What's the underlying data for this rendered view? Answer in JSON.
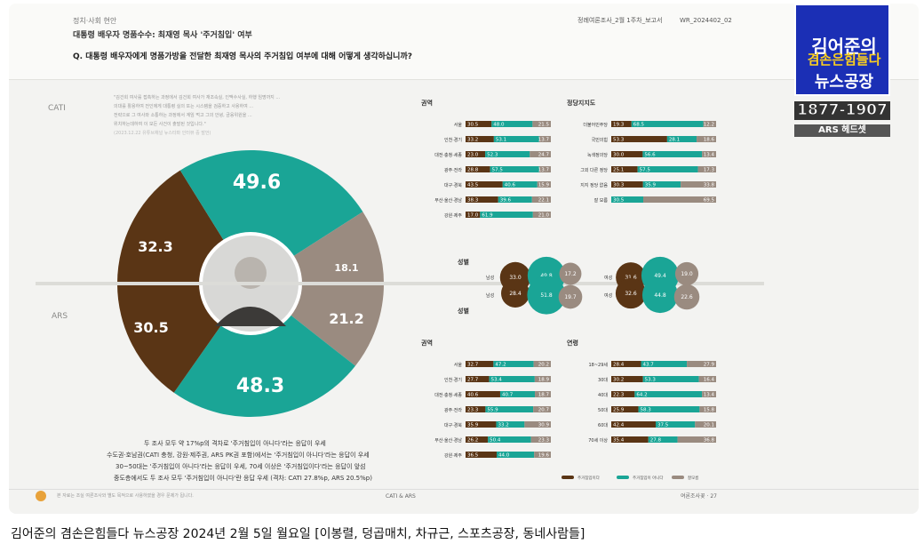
{
  "header": {
    "category": "정치·사회 현안",
    "subtitle": "대통령 배우자 명품수수: 최재영 목사 '주거침입' 여부",
    "question": "Q. 대통령 배우자에게 명품가방을 전달한 최재영 목사의 주거침입 여부에 대해 어떻게 생각하십니까?",
    "report": "정례여론조사_2월 1주차_보고서",
    "code": "WR_2024402_02"
  },
  "quote": {
    "lines": [
      "\"김건희 여사를 접촉하는 과정에서 김건희 여사가 재조속실, 인맥수사실, 하행 임명까지 ...",
      "의대를 활용하여 전인에게 대통령 실의 또는 시스템을 검증하고 사용하여 ...",
      "전략으로 그 여사와 소통하는 과정에서 계임 먹고 그의 안녕, 금융위원을 ...",
      "위치하는데하여 이 모든 사건이 출발된 것입니다.\""
    ],
    "source": "(2023.12.22 유튜브채널 뉴스타파 인터뷰 중 발언)"
  },
  "mode_labels": {
    "cati": "CATI",
    "ars": "ARS"
  },
  "pie": {
    "cati_slices": [
      {
        "label": "주거침입이 아니다",
        "value": "49.6"
      },
      {
        "label": "주거침입이다",
        "value": "32.3"
      },
      {
        "label": "잘 모름",
        "value": "18.1"
      }
    ],
    "ars_slices": [
      {
        "label": "주거침입이 아니다",
        "value": "48.3"
      },
      {
        "label": "주거침입이다",
        "value": "30.5"
      },
      {
        "label": "잘모름",
        "value": "21.2"
      }
    ]
  },
  "summary": [
    "두 조사 모두 약 17%p의 격차로 '주거침입이 아니다'라는 응답이 우세",
    "수도권·호남권(CATI 충청, 강원·제주권, ARS PK권 포함)에서는 '주거침입이 아니다'라는 응답이 우세",
    "30~50대는 '주거침입이 아니다'라는 응답이 우세, 70세 이상은 '주거침입이다'라는 응답이 앞섬",
    "중도층에서도 두 조사 모두 '주거침입이 아니다'란 응답 우세 (격차: CATI 27.8%p, ARS 20.5%p)"
  ],
  "footer": {
    "left": "본 자료는 조실 여론조사와 별도 목적으로 사용하였을 경우 문제가 됩니다.",
    "center": "CATI & ARS",
    "right": "여론조사꽃 · 27"
  },
  "logo": {
    "title1": "김어준의",
    "title2": "겸손은힘들다",
    "title3": "뉴스공장",
    "number": "1877-1907",
    "ars": "ARS 헤드셋"
  },
  "caption": "김어준의 겸손은힘들다 뉴스공장 2024년 2월 5일 월요일 [이봉렬, 덩곱매치, 차규근, 스포츠공장, 동네사람들]",
  "colors": {
    "yes": "#5a3515",
    "no": "#1aa596",
    "dk": "#9a8b80"
  },
  "chart_data": [
    {
      "type": "pie",
      "title": "CATI",
      "series": [
        {
          "name": "주거침입이 아니다",
          "value": 49.6
        },
        {
          "name": "주거침입이다",
          "value": 32.3
        },
        {
          "name": "잘 모름",
          "value": 18.1
        }
      ]
    },
    {
      "type": "pie",
      "title": "ARS",
      "series": [
        {
          "name": "주거침입이 아니다",
          "value": 48.3
        },
        {
          "name": "주거침입이다",
          "value": 30.5
        },
        {
          "name": "잘모름",
          "value": 21.2
        }
      ]
    },
    {
      "type": "bar",
      "title": "권역",
      "categories": [
        "서울",
        "인천·경기",
        "대전·충청·세종",
        "광주·전라",
        "대구·경북",
        "부산·울산·경남",
        "강원·제주"
      ],
      "rows": [
        [
          30.5,
          48.0,
          21.5
        ],
        [
          33.2,
          53.1,
          13.7
        ],
        [
          23.0,
          52.3,
          24.7
        ],
        [
          28.8,
          57.5,
          13.7
        ],
        [
          43.5,
          40.6,
          15.9
        ],
        [
          38.3,
          39.6,
          22.1
        ],
        [
          17.0,
          61.9,
          21.0
        ]
      ]
    },
    {
      "type": "bar",
      "title": "정당지지도",
      "categories": [
        "더불어민주당",
        "국민의힘",
        "녹색정의당",
        "그외 다른 정당",
        "지지 정당 없음",
        "잘 모름"
      ],
      "rows": [
        [
          19.3,
          68.5,
          12.2
        ],
        [
          53.3,
          28.1,
          18.6
        ],
        [
          30.0,
          56.6,
          13.4
        ],
        [
          25.1,
          57.5,
          17.3
        ],
        [
          30.3,
          35.9,
          33.8
        ],
        [
          0,
          30.5,
          69.5
        ]
      ]
    },
    {
      "type": "bubble",
      "title": "성별",
      "cati": {
        "남성": [
          33.0,
          49.8,
          17.2
        ],
        "여성": [
          31.6,
          49.4,
          19.0
        ]
      },
      "ars": {
        "남성": [
          28.4,
          51.8,
          19.7
        ],
        "여성": [
          32.6,
          44.8,
          22.6
        ]
      }
    },
    {
      "type": "bar",
      "title": "권역",
      "categories": [
        "서울",
        "인천·경기",
        "대전·충청·세종",
        "광주·전라",
        "대구·경북",
        "부산·울산·경남",
        "강원·제주"
      ],
      "rows": [
        [
          32.7,
          47.2,
          20.2
        ],
        [
          27.7,
          53.4,
          18.9
        ],
        [
          40.6,
          40.7,
          18.7
        ],
        [
          23.3,
          55.9,
          20.7
        ],
        [
          35.9,
          33.2,
          30.9
        ],
        [
          26.2,
          50.4,
          23.3
        ],
        [
          36.5,
          44.0,
          19.6
        ]
      ]
    },
    {
      "type": "bar",
      "title": "연령",
      "categories": [
        "18~29세",
        "30대",
        "40대",
        "50대",
        "60대",
        "70세 이상"
      ],
      "rows": [
        [
          28.4,
          43.7,
          27.9
        ],
        [
          30.2,
          53.3,
          16.4
        ],
        [
          22.3,
          64.2,
          13.4
        ],
        [
          25.9,
          58.3,
          15.8
        ],
        [
          42.4,
          37.5,
          20.1
        ],
        [
          35.4,
          27.8,
          36.8
        ]
      ]
    }
  ],
  "legend": [
    "주거침입이다",
    "주거침입이 아니다",
    "잘모름"
  ]
}
